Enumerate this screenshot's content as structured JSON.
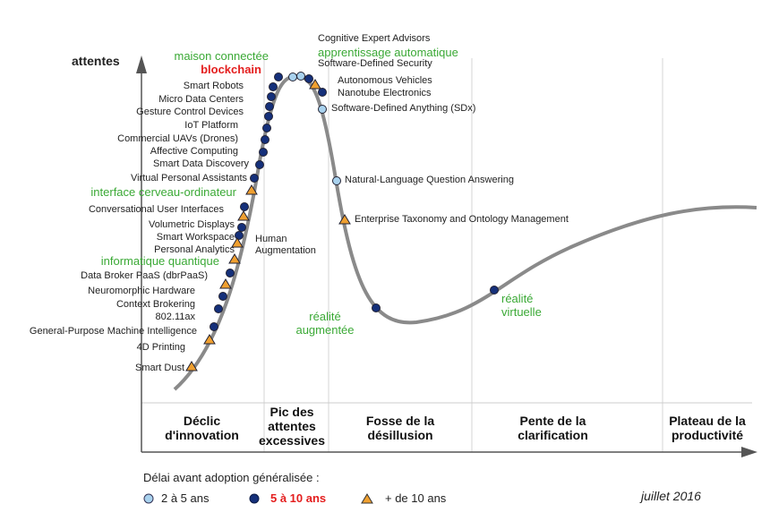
{
  "y_axis_label": "attentes",
  "phases": [
    "Déclic d'innovation",
    "Pic des attentes excessives",
    "Fosse de la désillusion",
    "Pente de la clarification",
    "Plateau de la productivité"
  ],
  "legend_title": "Délai avant adoption généralisée :",
  "maturity_groups": [
    {
      "label": "2 à 5 ans",
      "technologies": [
        "Cognitive Expert Advisors",
        "apprentissage automatique",
        "Software-Defined Anything (SDx)",
        "Natural-Language Question Answering"
      ]
    },
    {
      "label": "5 à 10 ans",
      "technologies": [
        "maison connectée",
        "blockchain",
        "Software-Defined Security",
        "Nanotube Electronics",
        "Smart Robots",
        "Micro Data Centers",
        "Gesture Control Devices",
        "IoT Platform",
        "Commercial UAVs (Drones)",
        "Affective Computing",
        "Smart Data Discovery",
        "Virtual Personal Assistants",
        "Conversational User Interfaces",
        "Smart Workspace",
        "Personal Analytics",
        "Data Broker PaaS (dbrPaaS)",
        "Context Brokering",
        "802.11ax",
        "General-Purpose Machine Intelligence",
        "réalité augmentée",
        "réalité virtuelle"
      ]
    },
    {
      "label": "+ de 10 ans",
      "technologies": [
        "Autonomous Vehicles",
        "Enterprise Taxonomy and Ontology Management",
        "interface cerveau-ordinateur",
        "Volumetric Displays",
        "Human Augmentation",
        "informatique quantique",
        "Neuromorphic Hardware",
        "4D Printing",
        "Smart Dust"
      ]
    }
  ],
  "date": "juillet 2016"
}
